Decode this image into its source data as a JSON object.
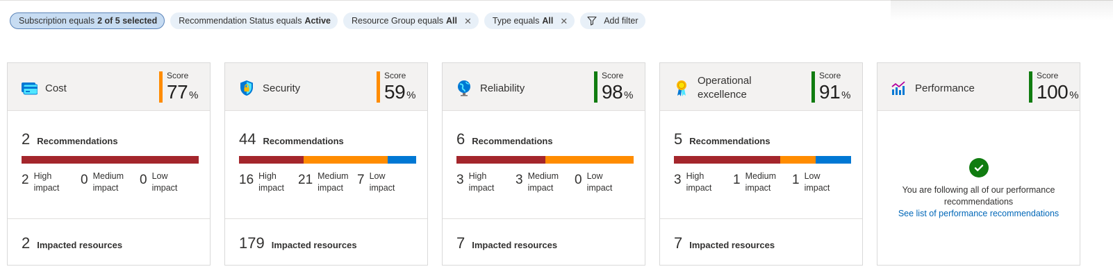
{
  "filters": [
    {
      "prefix": "Subscription equals",
      "value": "2 of 5 selected",
      "removable": false,
      "selected": true
    },
    {
      "prefix": "Recommendation Status equals",
      "value": "Active",
      "removable": false,
      "selected": false
    },
    {
      "prefix": "Resource Group equals",
      "value": "All",
      "removable": true,
      "selected": false
    },
    {
      "prefix": "Type equals",
      "value": "All",
      "removable": true,
      "selected": false
    }
  ],
  "add_filter_label": "Add filter",
  "score_label": "Score",
  "pct": "%",
  "recommendations_label": "Recommendations",
  "impacted_label": "Impacted resources",
  "impact_labels": {
    "high": [
      "High",
      "impact"
    ],
    "medium": [
      "Medium",
      "impact"
    ],
    "low": [
      "Low",
      "impact"
    ]
  },
  "colors": {
    "high": "#a4262c",
    "medium": "#ff8c00",
    "low": "#0078d4",
    "good": "#107c10",
    "warn": "#ff8c00"
  },
  "cards": [
    {
      "title": "Cost",
      "icon": "cost-card-icon",
      "score": "77",
      "score_color": "#ff8c00",
      "recommendations": "2",
      "high": "2",
      "medium": "0",
      "low": "0",
      "impacted": "2"
    },
    {
      "title": "Security",
      "icon": "security-shield-icon",
      "score": "59",
      "score_color": "#ff8c00",
      "recommendations": "44",
      "high": "16",
      "medium": "21",
      "low": "7",
      "impacted": "179"
    },
    {
      "title": "Reliability",
      "icon": "globe-icon",
      "score": "98",
      "score_color": "#107c10",
      "recommendations": "6",
      "high": "3",
      "medium": "3",
      "low": "0",
      "impacted": "7"
    },
    {
      "title": "Operational excellence",
      "title_lines": [
        "Operational",
        "excellence"
      ],
      "icon": "award-ribbon-icon",
      "score": "91",
      "score_color": "#107c10",
      "recommendations": "5",
      "high": "3",
      "medium": "1",
      "low": "1",
      "impacted": "7"
    },
    {
      "title": "Performance",
      "icon": "performance-chart-icon",
      "score": "100",
      "score_color": "#107c10",
      "message_line1": "You are following all of our performance",
      "message_line2": "recommendations",
      "link": "See list of performance recommendations"
    }
  ]
}
